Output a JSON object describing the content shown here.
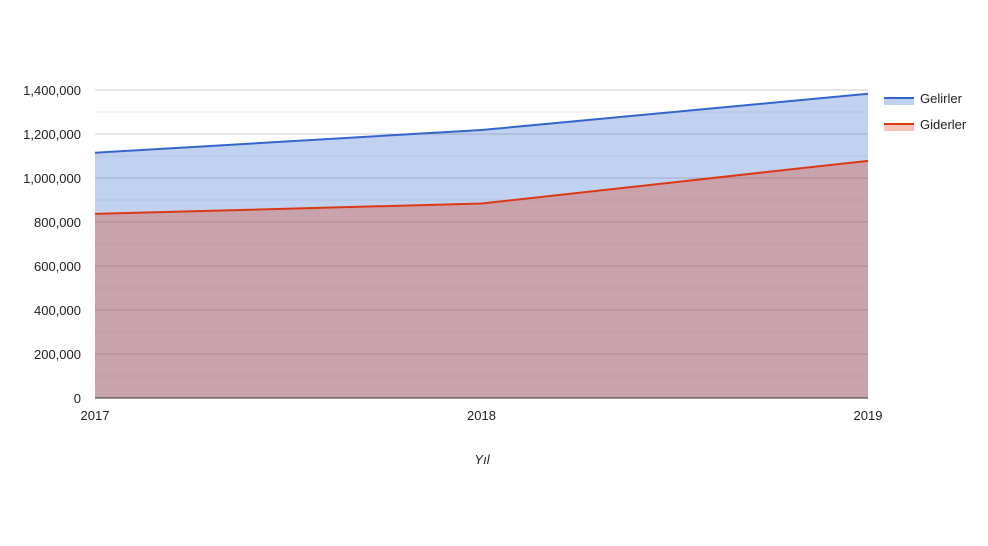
{
  "chart_data": {
    "type": "area",
    "title": "",
    "xlabel": "Yıl",
    "ylabel": "",
    "x": [
      "2017",
      "2018",
      "2019"
    ],
    "ylim": [
      0,
      1400000
    ],
    "y_ticks": [
      0,
      200000,
      400000,
      600000,
      800000,
      1000000,
      1200000,
      1400000
    ],
    "y_tick_labels": [
      "0",
      "200,000",
      "400,000",
      "600,000",
      "800,000",
      "1,000,000",
      "1,200,000",
      "1,400,000"
    ],
    "grid": true,
    "legend_position": "right",
    "series": [
      {
        "name": "Gelirler",
        "values": [
          1115000,
          1218000,
          1383000
        ],
        "color": "#3366cc"
      },
      {
        "name": "Giderler",
        "values": [
          837000,
          884000,
          1078000
        ],
        "color": "#dc3912"
      }
    ]
  }
}
